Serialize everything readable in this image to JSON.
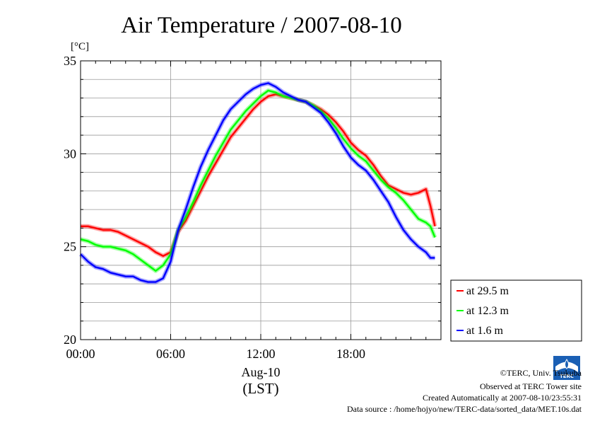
{
  "chart_data": {
    "type": "line",
    "title": "Air Temperature / 2007-08-10",
    "ylabel": "[°C]",
    "ylim": [
      20,
      35
    ],
    "yticks": [
      20,
      25,
      30,
      35
    ],
    "xlim": [
      0,
      24
    ],
    "xticks": [
      {
        "hour": 0,
        "label": "00:00"
      },
      {
        "hour": 6,
        "label": "06:00"
      },
      {
        "hour": 12,
        "label": "12:00"
      },
      {
        "hour": 18,
        "label": "18:00"
      }
    ],
    "xlabel_date": "Aug-10",
    "xlabel": "(LST)",
    "grid": true,
    "legend_position": "right",
    "series": [
      {
        "name": "at 29.5 m",
        "color": "#ff0000",
        "points": [
          [
            0,
            26.1
          ],
          [
            0.5,
            26.1
          ],
          [
            1,
            26.0
          ],
          [
            1.5,
            25.9
          ],
          [
            2,
            25.9
          ],
          [
            2.5,
            25.8
          ],
          [
            3,
            25.6
          ],
          [
            3.5,
            25.4
          ],
          [
            4,
            25.2
          ],
          [
            4.5,
            25.0
          ],
          [
            5,
            24.7
          ],
          [
            5.5,
            24.5
          ],
          [
            6,
            24.7
          ],
          [
            6.5,
            25.8
          ],
          [
            7,
            26.4
          ],
          [
            7.5,
            27.2
          ],
          [
            8,
            28.0
          ],
          [
            8.5,
            28.8
          ],
          [
            9,
            29.5
          ],
          [
            9.5,
            30.2
          ],
          [
            10,
            30.9
          ],
          [
            10.5,
            31.4
          ],
          [
            11,
            31.9
          ],
          [
            11.5,
            32.4
          ],
          [
            12,
            32.8
          ],
          [
            12.5,
            33.1
          ],
          [
            13,
            33.2
          ],
          [
            13.5,
            33.1
          ],
          [
            14,
            33.0
          ],
          [
            14.5,
            32.9
          ],
          [
            15,
            32.8
          ],
          [
            15.5,
            32.6
          ],
          [
            16,
            32.4
          ],
          [
            16.5,
            32.1
          ],
          [
            17,
            31.7
          ],
          [
            17.5,
            31.2
          ],
          [
            18,
            30.6
          ],
          [
            18.5,
            30.2
          ],
          [
            19,
            29.9
          ],
          [
            19.5,
            29.4
          ],
          [
            20,
            28.8
          ],
          [
            20.5,
            28.3
          ],
          [
            21,
            28.1
          ],
          [
            21.5,
            27.9
          ],
          [
            22,
            27.8
          ],
          [
            22.5,
            27.9
          ],
          [
            23,
            28.1
          ],
          [
            23.3,
            27.2
          ],
          [
            23.6,
            26.1
          ]
        ]
      },
      {
        "name": "at 12.3 m",
        "color": "#00ff00",
        "points": [
          [
            0,
            25.4
          ],
          [
            0.5,
            25.3
          ],
          [
            1,
            25.1
          ],
          [
            1.5,
            25.0
          ],
          [
            2,
            25.0
          ],
          [
            2.5,
            24.9
          ],
          [
            3,
            24.8
          ],
          [
            3.5,
            24.6
          ],
          [
            4,
            24.3
          ],
          [
            4.5,
            24.0
          ],
          [
            5,
            23.7
          ],
          [
            5.5,
            24.0
          ],
          [
            6,
            24.6
          ],
          [
            6.5,
            25.9
          ],
          [
            7,
            26.6
          ],
          [
            7.5,
            27.4
          ],
          [
            8,
            28.3
          ],
          [
            8.5,
            29.1
          ],
          [
            9,
            29.9
          ],
          [
            9.5,
            30.6
          ],
          [
            10,
            31.3
          ],
          [
            10.5,
            31.8
          ],
          [
            11,
            32.3
          ],
          [
            11.5,
            32.7
          ],
          [
            12,
            33.1
          ],
          [
            12.5,
            33.4
          ],
          [
            13,
            33.3
          ],
          [
            13.5,
            33.1
          ],
          [
            14,
            33.0
          ],
          [
            14.5,
            32.9
          ],
          [
            15,
            32.8
          ],
          [
            15.5,
            32.6
          ],
          [
            16,
            32.3
          ],
          [
            16.5,
            31.9
          ],
          [
            17,
            31.4
          ],
          [
            17.5,
            30.8
          ],
          [
            18,
            30.3
          ],
          [
            18.5,
            29.9
          ],
          [
            19,
            29.6
          ],
          [
            19.5,
            29.1
          ],
          [
            20,
            28.6
          ],
          [
            20.5,
            28.2
          ],
          [
            21,
            27.9
          ],
          [
            21.5,
            27.5
          ],
          [
            22,
            27.0
          ],
          [
            22.5,
            26.5
          ],
          [
            23,
            26.3
          ],
          [
            23.3,
            26.1
          ],
          [
            23.6,
            25.5
          ]
        ]
      },
      {
        "name": "at 1.6 m",
        "color": "#0000ff",
        "points": [
          [
            0,
            24.6
          ],
          [
            0.5,
            24.2
          ],
          [
            1,
            23.9
          ],
          [
            1.5,
            23.8
          ],
          [
            2,
            23.6
          ],
          [
            2.5,
            23.5
          ],
          [
            3,
            23.4
          ],
          [
            3.5,
            23.4
          ],
          [
            4,
            23.2
          ],
          [
            4.5,
            23.1
          ],
          [
            5,
            23.1
          ],
          [
            5.5,
            23.3
          ],
          [
            6,
            24.2
          ],
          [
            6.5,
            25.9
          ],
          [
            7,
            27.0
          ],
          [
            7.5,
            28.2
          ],
          [
            8,
            29.3
          ],
          [
            8.5,
            30.2
          ],
          [
            9,
            31.0
          ],
          [
            9.5,
            31.8
          ],
          [
            10,
            32.4
          ],
          [
            10.5,
            32.8
          ],
          [
            11,
            33.2
          ],
          [
            11.5,
            33.5
          ],
          [
            12,
            33.7
          ],
          [
            12.5,
            33.8
          ],
          [
            13,
            33.6
          ],
          [
            13.5,
            33.3
          ],
          [
            14,
            33.1
          ],
          [
            14.5,
            32.9
          ],
          [
            15,
            32.8
          ],
          [
            15.5,
            32.5
          ],
          [
            16,
            32.2
          ],
          [
            16.5,
            31.7
          ],
          [
            17,
            31.1
          ],
          [
            17.5,
            30.4
          ],
          [
            18,
            29.8
          ],
          [
            18.5,
            29.4
          ],
          [
            19,
            29.1
          ],
          [
            19.5,
            28.6
          ],
          [
            20,
            28.0
          ],
          [
            20.5,
            27.4
          ],
          [
            21,
            26.6
          ],
          [
            21.5,
            25.9
          ],
          [
            22,
            25.4
          ],
          [
            22.5,
            25.0
          ],
          [
            23,
            24.7
          ],
          [
            23.3,
            24.4
          ],
          [
            23.6,
            24.4
          ]
        ]
      }
    ]
  },
  "credits": {
    "copyright": "©TERC, Univ. Tsukuba",
    "site": "Observed at TERC Tower site",
    "created": "Created Automatically at 2007-08-10/23:55:31",
    "source": "Data source : /home/hojyo/new/TERC-data/sorted_data/MET.10s.dat",
    "logo_text": "TERC"
  }
}
